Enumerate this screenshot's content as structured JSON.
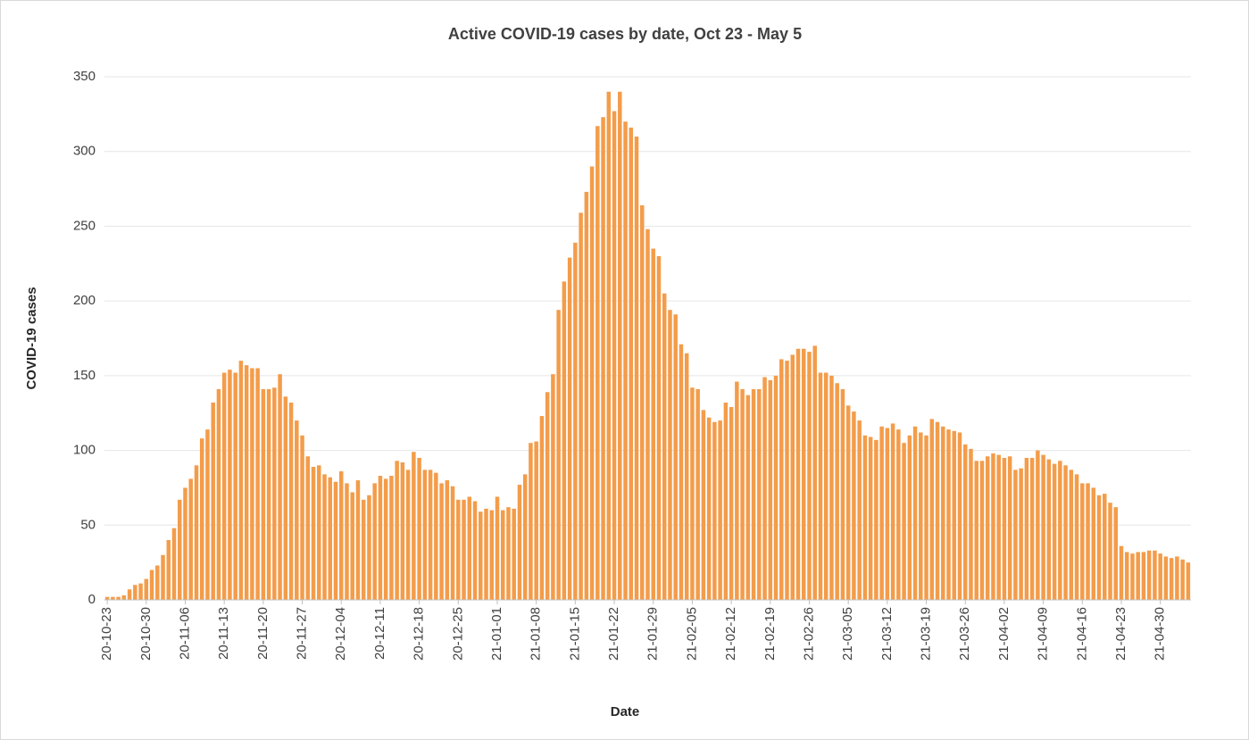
{
  "chart_data": {
    "type": "bar",
    "title": "Active COVID-19 cases by date, Oct 23 - May 5",
    "x_label": "Date",
    "y_label": "COVID-19 cases",
    "color": "#f39c4a",
    "ylim": [
      0,
      350
    ],
    "yticks": [
      0,
      50,
      100,
      150,
      200,
      250,
      300,
      350
    ],
    "grid": true,
    "categories": [
      "20-10-23",
      null,
      null,
      null,
      null,
      null,
      null,
      "20-10-30",
      null,
      null,
      null,
      null,
      null,
      null,
      "20-11-06",
      null,
      null,
      null,
      null,
      null,
      null,
      "20-11-13",
      null,
      null,
      null,
      null,
      null,
      null,
      "20-11-20",
      null,
      null,
      null,
      null,
      null,
      null,
      "20-11-27",
      null,
      null,
      null,
      null,
      null,
      null,
      "20-12-04",
      null,
      null,
      null,
      null,
      null,
      null,
      "20-12-11",
      null,
      null,
      null,
      null,
      null,
      null,
      "20-12-18",
      null,
      null,
      null,
      null,
      null,
      null,
      "20-12-25",
      null,
      null,
      null,
      null,
      null,
      null,
      "21-01-01",
      null,
      null,
      null,
      null,
      null,
      null,
      "21-01-08",
      null,
      null,
      null,
      null,
      null,
      null,
      "21-01-15",
      null,
      null,
      null,
      null,
      null,
      null,
      "21-01-22",
      null,
      null,
      null,
      null,
      null,
      null,
      "21-01-29",
      null,
      null,
      null,
      null,
      null,
      null,
      "21-02-05",
      null,
      null,
      null,
      null,
      null,
      null,
      "21-02-12",
      null,
      null,
      null,
      null,
      null,
      null,
      "21-02-19",
      null,
      null,
      null,
      null,
      null,
      null,
      "21-02-26",
      null,
      null,
      null,
      null,
      null,
      null,
      "21-03-05",
      null,
      null,
      null,
      null,
      null,
      null,
      "21-03-12",
      null,
      null,
      null,
      null,
      null,
      null,
      "21-03-19",
      null,
      null,
      null,
      null,
      null,
      null,
      "21-03-26",
      null,
      null,
      null,
      null,
      null,
      null,
      "21-04-02",
      null,
      null,
      null,
      null,
      null,
      null,
      "21-04-09",
      null,
      null,
      null,
      null,
      null,
      null,
      "21-04-16",
      null,
      null,
      null,
      null,
      null,
      null,
      "21-04-23",
      null,
      null,
      null,
      null,
      null,
      null,
      "21-04-30",
      null,
      null,
      null,
      null,
      null
    ],
    "values": [
      2,
      2,
      2,
      3,
      7,
      10,
      11,
      14,
      20,
      23,
      30,
      40,
      48,
      67,
      75,
      81,
      90,
      108,
      114,
      132,
      141,
      152,
      154,
      152,
      160,
      157,
      155,
      155,
      141,
      141,
      142,
      151,
      136,
      132,
      120,
      110,
      96,
      89,
      90,
      84,
      82,
      79,
      86,
      78,
      72,
      80,
      67,
      70,
      78,
      83,
      81,
      83,
      93,
      92,
      87,
      99,
      95,
      87,
      87,
      85,
      78,
      80,
      76,
      67,
      67,
      69,
      66,
      59,
      61,
      60,
      69,
      60,
      62,
      61,
      77,
      84,
      105,
      106,
      123,
      139,
      151,
      194,
      213,
      229,
      239,
      259,
      273,
      290,
      317,
      323,
      340,
      327,
      340,
      320,
      316,
      310,
      264,
      248,
      235,
      230,
      205,
      194,
      191,
      171,
      165,
      142,
      141,
      127,
      122,
      119,
      120,
      132,
      129,
      146,
      141,
      137,
      141,
      141,
      149,
      147,
      150,
      161,
      160,
      164,
      168,
      168,
      166,
      170,
      152,
      152,
      150,
      145,
      141,
      130,
      126,
      120,
      110,
      109,
      107,
      116,
      115,
      118,
      114,
      105,
      110,
      116,
      112,
      110,
      121,
      119,
      116,
      114,
      113,
      112,
      104,
      101,
      93,
      93,
      96,
      98,
      97,
      95,
      96,
      87,
      88,
      95,
      95,
      100,
      97,
      94,
      91,
      93,
      90,
      87,
      84,
      78,
      78,
      75,
      70,
      71,
      65,
      62,
      36,
      32,
      31,
      32,
      32,
      33,
      33,
      31,
      29,
      28,
      29,
      27,
      25
    ]
  }
}
